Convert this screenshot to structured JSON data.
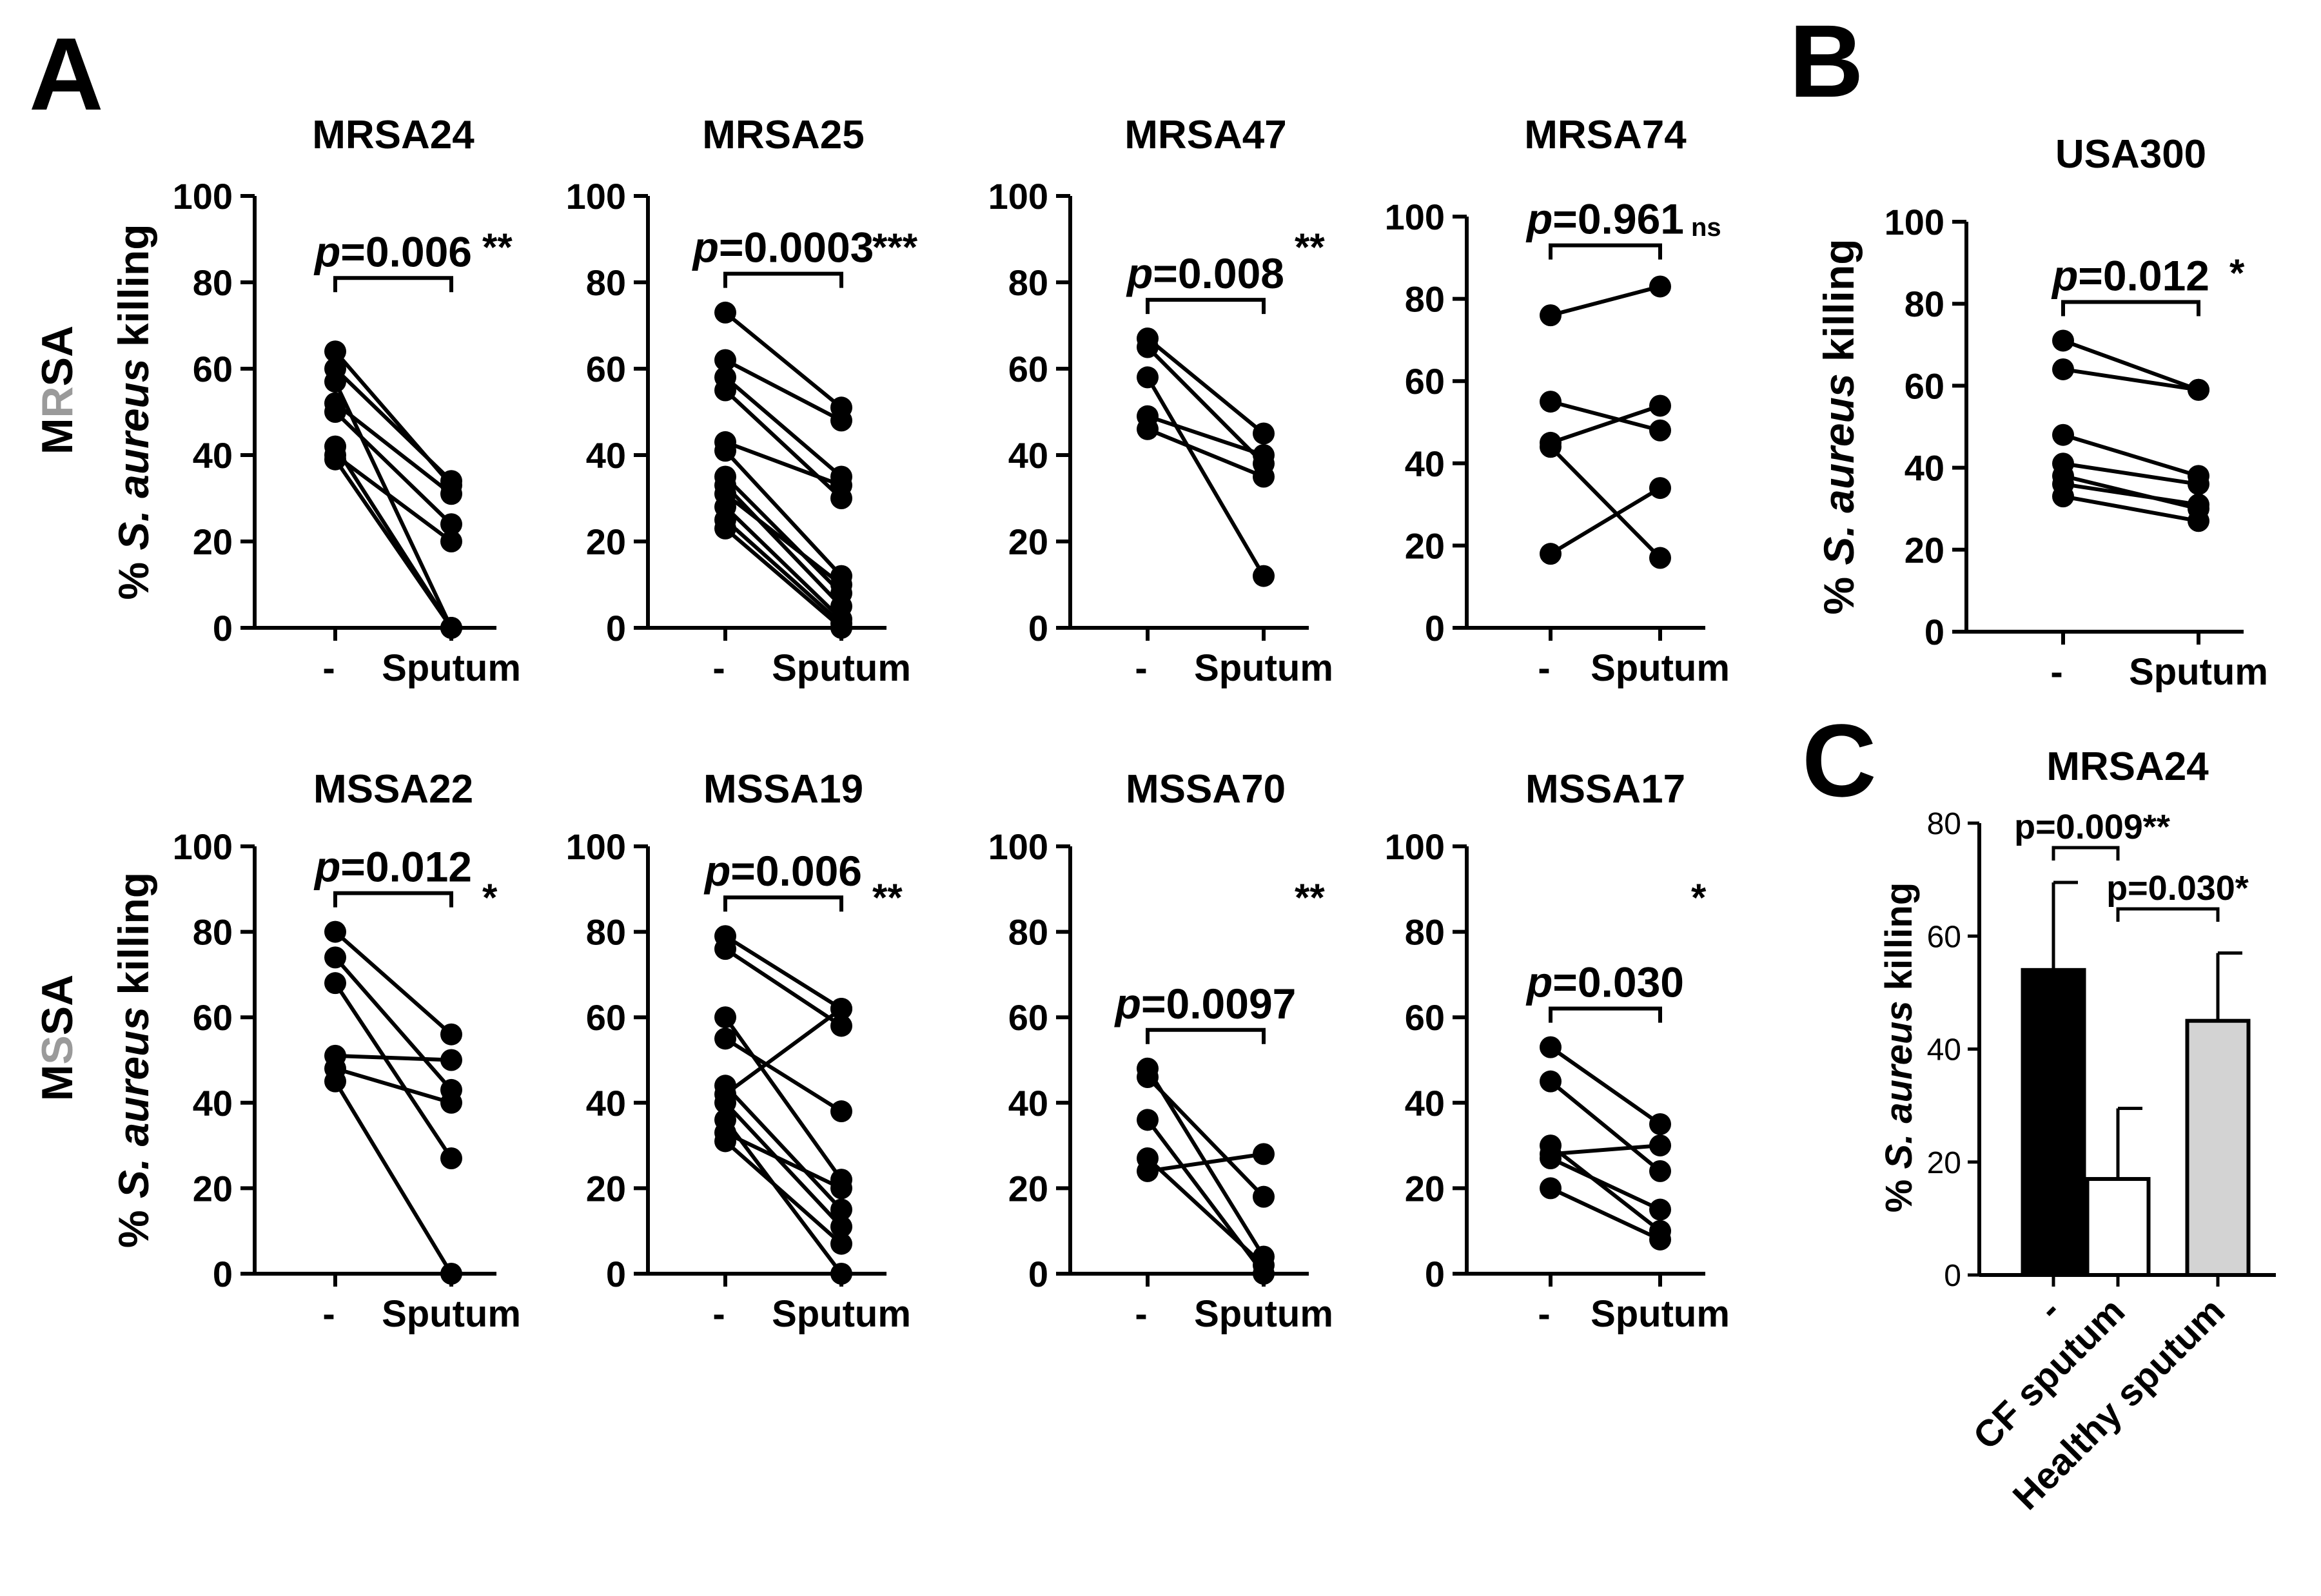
{
  "panel_letters": {
    "a": "A",
    "b": "B",
    "c": "C"
  },
  "row_labels": {
    "mrsa": {
      "pre": "M",
      "mid": "R",
      "post": "SA"
    },
    "mssa": {
      "pre": "M",
      "mid": "S",
      "post": "SA"
    }
  },
  "y_axis_label": {
    "prefix": "% ",
    "species": "S. aureus",
    "suffix": " killing"
  },
  "colors": {
    "ink": "#000000",
    "row_letter_gray": "#9a9a9a",
    "healthy_bar": "#d3d3d3",
    "white_bar": "#ffffff"
  },
  "chart_data": [
    {
      "id": "MRSA24",
      "type": "scatter",
      "title": "MRSA24",
      "categories": [
        "-",
        "Sputum"
      ],
      "ylim": [
        0,
        100
      ],
      "yticks": [
        0,
        20,
        40,
        60,
        80,
        100
      ],
      "pairs": [
        [
          64,
          33
        ],
        [
          60,
          34
        ],
        [
          57,
          0
        ],
        [
          52,
          31
        ],
        [
          50,
          24
        ],
        [
          42,
          0
        ],
        [
          40,
          20
        ],
        [
          39,
          0
        ]
      ],
      "p_prefix": "p",
      "p_value": "=0.006",
      "sig": "**"
    },
    {
      "id": "MRSA25",
      "type": "scatter",
      "title": "MRSA25",
      "categories": [
        "-",
        "Sputum"
      ],
      "ylim": [
        0,
        100
      ],
      "yticks": [
        0,
        20,
        40,
        60,
        80,
        100
      ],
      "pairs": [
        [
          73,
          51
        ],
        [
          62,
          48
        ],
        [
          58,
          35
        ],
        [
          55,
          30
        ],
        [
          43,
          33
        ],
        [
          41,
          12
        ],
        [
          35,
          8
        ],
        [
          33,
          5
        ],
        [
          28,
          2
        ],
        [
          25,
          1
        ],
        [
          23,
          0
        ],
        [
          31,
          10
        ]
      ],
      "p_prefix": "p",
      "p_value": "=0.0003",
      "sig": "***"
    },
    {
      "id": "MRSA47",
      "type": "scatter",
      "title": "MRSA47",
      "categories": [
        "-",
        "Sputum"
      ],
      "ylim": [
        0,
        100
      ],
      "yticks": [
        0,
        20,
        40,
        60,
        80,
        100
      ],
      "pairs": [
        [
          67,
          45
        ],
        [
          65,
          38
        ],
        [
          58,
          12
        ],
        [
          49,
          40
        ],
        [
          46,
          35
        ]
      ],
      "p_prefix": "p",
      "p_value": "=0.008",
      "sig": "**"
    },
    {
      "id": "MRSA74",
      "type": "scatter",
      "title": "MRSA74",
      "categories": [
        "-",
        "Sputum"
      ],
      "ylim": [
        0,
        100
      ],
      "yticks": [
        0,
        20,
        40,
        60,
        80,
        100
      ],
      "pairs": [
        [
          76,
          83
        ],
        [
          55,
          48
        ],
        [
          45,
          54
        ],
        [
          44,
          17
        ],
        [
          18,
          34
        ]
      ],
      "p_prefix": "p",
      "p_value": "=0.961",
      "sig": "ns"
    },
    {
      "id": "USA300",
      "type": "scatter",
      "title": "USA300",
      "categories": [
        "-",
        "Sputum"
      ],
      "ylim": [
        0,
        100
      ],
      "yticks": [
        0,
        20,
        40,
        60,
        80,
        100
      ],
      "pairs": [
        [
          71,
          59
        ],
        [
          64,
          59
        ],
        [
          48,
          38
        ],
        [
          41,
          36
        ],
        [
          38,
          30
        ],
        [
          36,
          31
        ],
        [
          33,
          27
        ]
      ],
      "p_prefix": "p",
      "p_value": "=0.012",
      "sig": "*"
    },
    {
      "id": "MSSA22",
      "type": "scatter",
      "title": "MSSA22",
      "categories": [
        "-",
        "Sputum"
      ],
      "ylim": [
        0,
        100
      ],
      "yticks": [
        0,
        20,
        40,
        60,
        80,
        100
      ],
      "pairs": [
        [
          80,
          56
        ],
        [
          74,
          43
        ],
        [
          68,
          27
        ],
        [
          51,
          50
        ],
        [
          48,
          40
        ],
        [
          45,
          0
        ]
      ],
      "p_prefix": "p",
      "p_value": "=0.012",
      "sig": "*"
    },
    {
      "id": "MSSA19",
      "type": "scatter",
      "title": "MSSA19",
      "categories": [
        "-",
        "Sputum"
      ],
      "ylim": [
        0,
        100
      ],
      "yticks": [
        0,
        20,
        40,
        60,
        80,
        100
      ],
      "pairs": [
        [
          79,
          62
        ],
        [
          76,
          58
        ],
        [
          60,
          22
        ],
        [
          55,
          38
        ],
        [
          44,
          15
        ],
        [
          42,
          62
        ],
        [
          40,
          11
        ],
        [
          33,
          20
        ],
        [
          31,
          7
        ],
        [
          36,
          0
        ]
      ],
      "p_prefix": "p",
      "p_value": "=0.006",
      "sig": "**"
    },
    {
      "id": "MSSA70",
      "type": "scatter",
      "title": "MSSA70",
      "categories": [
        "-",
        "Sputum"
      ],
      "ylim": [
        0,
        100
      ],
      "yticks": [
        0,
        20,
        40,
        60,
        80,
        100
      ],
      "pairs": [
        [
          48,
          4
        ],
        [
          46,
          18
        ],
        [
          36,
          0
        ],
        [
          27,
          2
        ],
        [
          24,
          28
        ]
      ],
      "p_prefix": "p",
      "p_value": "=0.0097",
      "sig": "**"
    },
    {
      "id": "MSSA17",
      "type": "scatter",
      "title": "MSSA17",
      "categories": [
        "-",
        "Sputum"
      ],
      "ylim": [
        0,
        100
      ],
      "yticks": [
        0,
        20,
        40,
        60,
        80,
        100
      ],
      "pairs": [
        [
          53,
          35
        ],
        [
          45,
          24
        ],
        [
          30,
          10
        ],
        [
          28,
          30
        ],
        [
          27,
          15
        ],
        [
          20,
          8
        ]
      ],
      "p_prefix": "p",
      "p_value": "=0.030",
      "sig": "*"
    },
    {
      "id": "MRSA24_bar",
      "type": "bar",
      "title": "MRSA24",
      "categories": [
        "-",
        "CF sputum",
        "Healthy sputum"
      ],
      "values": [
        54,
        17,
        45
      ],
      "errors": [
        15.5,
        12.5,
        12
      ],
      "ylim": [
        0,
        80
      ],
      "yticks": [
        0,
        20,
        40,
        60,
        80
      ],
      "comparisons": [
        {
          "from": 0,
          "to": 1,
          "label": "p=0.009**"
        },
        {
          "from": 1,
          "to": 2,
          "label": "p=0.030*"
        }
      ]
    }
  ]
}
